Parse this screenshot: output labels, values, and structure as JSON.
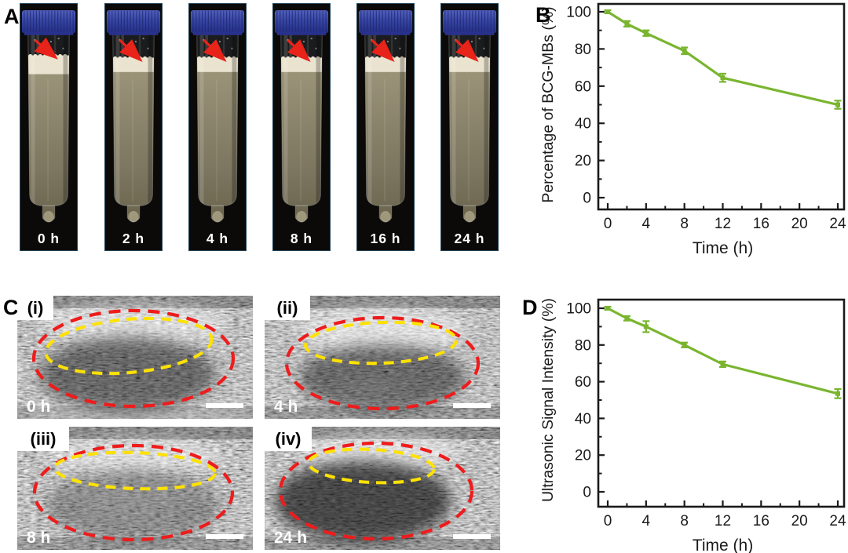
{
  "panels": {
    "A": {
      "label": "A",
      "description": "tube-photo-series",
      "tubes": [
        {
          "time": "0 h",
          "arrow": "red-arrow-to-microbubble-foam"
        },
        {
          "time": "2 h",
          "arrow": "red-arrow-to-microbubble-foam"
        },
        {
          "time": "4 h",
          "arrow": "red-arrow-to-microbubble-foam"
        },
        {
          "time": "8 h",
          "arrow": "red-arrow-to-microbubble-foam"
        },
        {
          "time": "16 h",
          "arrow": "red-arrow-to-microbubble-foam"
        },
        {
          "time": "24 h",
          "arrow": "red-arrow-to-microbubble-foam"
        }
      ]
    },
    "B": {
      "label": "B"
    },
    "C": {
      "label": "C",
      "description": "ultrasound-image-grid",
      "images": [
        {
          "index": "(i)",
          "time": "0 h",
          "annotations": [
            "red-dashed-ellipse",
            "yellow-dashed-outline",
            "scale-bar"
          ]
        },
        {
          "index": "(ii)",
          "time": "4 h",
          "annotations": [
            "red-dashed-ellipse",
            "yellow-dashed-outline",
            "scale-bar"
          ]
        },
        {
          "index": "(iii)",
          "time": "8 h",
          "annotations": [
            "red-dashed-ellipse",
            "yellow-dashed-outline",
            "scale-bar"
          ]
        },
        {
          "index": "(iv)",
          "time": "24 h",
          "annotations": [
            "red-dashed-ellipse",
            "yellow-dashed-outline",
            "scale-bar"
          ]
        }
      ]
    },
    "D": {
      "label": "D"
    }
  },
  "chart_data": [
    {
      "panel": "B",
      "type": "line",
      "title": "",
      "x": [
        0,
        2,
        4,
        8,
        12,
        24
      ],
      "values": [
        100,
        93.5,
        88.5,
        79,
        64.5,
        50
      ],
      "errors": [
        0.8,
        1.5,
        1.5,
        1.8,
        2.2,
        2.2
      ],
      "xlabel": "Time (h)",
      "ylabel": "Percentage of BCG-MBs (%)",
      "xticks": [
        0,
        4,
        8,
        12,
        16,
        20,
        24
      ],
      "yticks": [
        0,
        20,
        40,
        60,
        80,
        100
      ],
      "xlim": [
        0,
        24
      ],
      "ylim": [
        0,
        100
      ],
      "grid": false,
      "legend": "none",
      "line_color": "#7ab52f"
    },
    {
      "panel": "D",
      "type": "line",
      "title": "",
      "x": [
        0,
        2,
        4,
        8,
        12,
        24
      ],
      "values": [
        100,
        94.5,
        90,
        80,
        69.5,
        53.5
      ],
      "errors": [
        0.8,
        1.2,
        3,
        1.3,
        1.5,
        2.5
      ],
      "xlabel": "Time (h)",
      "ylabel": "Ultrasonic Signal Intensity (%)",
      "xticks": [
        0,
        4,
        8,
        12,
        16,
        20,
        24
      ],
      "yticks": [
        0,
        20,
        40,
        60,
        80,
        100
      ],
      "xlim": [
        0,
        24
      ],
      "ylim": [
        0,
        100
      ],
      "grid": false,
      "legend": "none",
      "line_color": "#7ab52f"
    }
  ],
  "colors": {
    "curve_green": "#7ab52f",
    "axis_black": "#1a1a1a",
    "arrow_red": "#e8231a",
    "dashed_red": "#ee1c1c",
    "dashed_yellow": "#ffe200",
    "cap_blue": "#3746a4",
    "foam_white": "#eae3cf",
    "liquid_olive": "#847e64",
    "scale_bar_white": "#ffffff",
    "tube_bg_black": "#0b0a08"
  }
}
